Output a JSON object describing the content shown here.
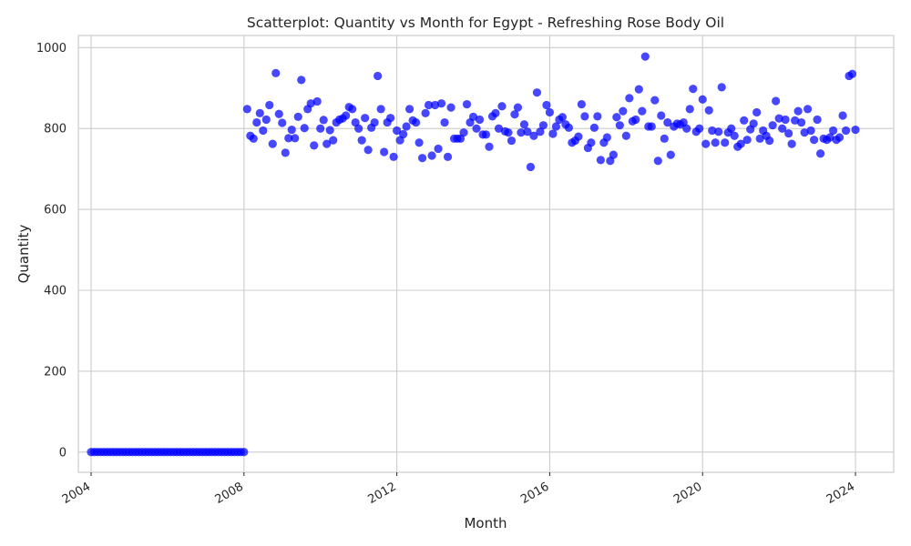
{
  "chart_data": {
    "type": "scatter",
    "title": "Scatterplot: Quantity vs Month for Egypt - Refreshing Rose Body Oil",
    "xlabel": "Month",
    "ylabel": "Quantity",
    "xlim": [
      "2003-09",
      "2025-01"
    ],
    "ylim": [
      -50,
      1030
    ],
    "x_ticks": [
      "2004",
      "2008",
      "2012",
      "2016",
      "2020",
      "2024"
    ],
    "y_ticks": [
      0,
      200,
      400,
      600,
      800,
      1000
    ],
    "grid": true,
    "legend": "none",
    "point_color": "#0000ff",
    "series": [
      {
        "start_month": "2004-01",
        "step": "month",
        "values": [
          0,
          0,
          0,
          0,
          0,
          0,
          0,
          0,
          0,
          0,
          0,
          0,
          0,
          0,
          0,
          0,
          0,
          0,
          0,
          0,
          0,
          0,
          0,
          0,
          0,
          0,
          0,
          0,
          0,
          0,
          0,
          0,
          0,
          0,
          0,
          0,
          0,
          0,
          0,
          0,
          0,
          0,
          0,
          0,
          0,
          0,
          0,
          0,
          0,
          848,
          782,
          775,
          815,
          838,
          795,
          822,
          858,
          762,
          937,
          836,
          814,
          740,
          776,
          797,
          776,
          829,
          920,
          801,
          848,
          862,
          758,
          867,
          800,
          821,
          762,
          796,
          771,
          815,
          822,
          825,
          832,
          853,
          848,
          815,
          800,
          771,
          826,
          747,
          802,
          815,
          930,
          848,
          742,
          815,
          826,
          730,
          795,
          771,
          786,
          805,
          848,
          820,
          815,
          765,
          727,
          838,
          858,
          733,
          858,
          750,
          862,
          815,
          730,
          852,
          775,
          775,
          775,
          790,
          860,
          815,
          829,
          800,
          822,
          785,
          785,
          755,
          830,
          838,
          800,
          855,
          793,
          790,
          770,
          835,
          852,
          790,
          810,
          792,
          705,
          782,
          889,
          792,
          808,
          858,
          840,
          787,
          805,
          822,
          828,
          810,
          802,
          765,
          770,
          780,
          860,
          830,
          752,
          765,
          802,
          830,
          722,
          765,
          778,
          720,
          735,
          828,
          808,
          843,
          782,
          875,
          818,
          822,
          897,
          843,
          978,
          805,
          805,
          870,
          720,
          832,
          775,
          815,
          735,
          805,
          812,
          810,
          815,
          800,
          848,
          898,
          792,
          800,
          872,
          762,
          845,
          795,
          765,
          792,
          902,
          765,
          790,
          800,
          782,
          755,
          762,
          820,
          772,
          798,
          812,
          840,
          775,
          795,
          782,
          770,
          808,
          868,
          825,
          800,
          822,
          788,
          762,
          820,
          843,
          815,
          790,
          848,
          795,
          772,
          822,
          738,
          775,
          772,
          778,
          795,
          772,
          778,
          832,
          795,
          930,
          935,
          797
        ]
      }
    ]
  }
}
